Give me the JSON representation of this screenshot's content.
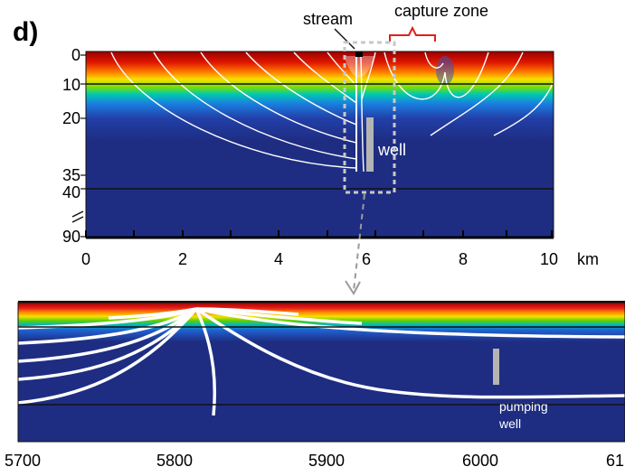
{
  "panel_label": "d)",
  "annotations": {
    "stream": "stream",
    "capture_zone": "capture zone",
    "well": "well",
    "pumping_well_line1": "pumping",
    "pumping_well_line2": "well"
  },
  "top_panel": {
    "depth_ticks": [
      "0",
      "10",
      "20",
      "35",
      "40",
      "90"
    ],
    "x_ticks": [
      "0",
      "2",
      "4",
      "6",
      "8",
      "10"
    ],
    "x_unit": "km"
  },
  "bottom_panel": {
    "x_ticks": [
      "5700",
      "5800",
      "5900",
      "6000",
      "61"
    ]
  },
  "colors": {
    "background": "#1e2d82",
    "streamline": "#ffffff",
    "well": "#b4b4b4",
    "capture_bracket": "#e0201a",
    "dashed_box": "#c8c8c8"
  }
}
